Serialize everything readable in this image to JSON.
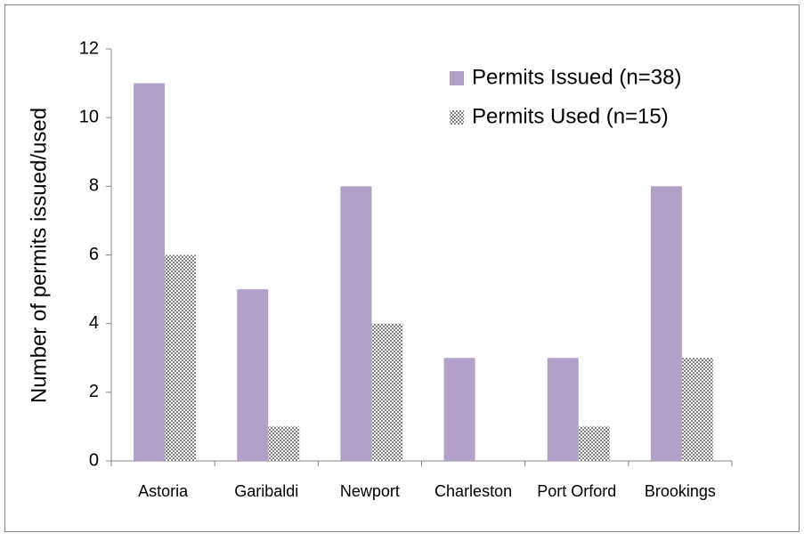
{
  "chart_data": {
    "type": "bar",
    "categories": [
      "Astoria",
      "Garibaldi",
      "Newport",
      "Charleston",
      "Port Orford",
      "Brookings"
    ],
    "series": [
      {
        "name": "Permits Issued (n=38)",
        "color": "#b1a0c7",
        "values": [
          11,
          5,
          8,
          3,
          3,
          8
        ]
      },
      {
        "name": "Permits Used (n=15)",
        "color": "#7f7f7f",
        "pattern": "dots",
        "values": [
          6,
          1,
          4,
          0,
          1,
          3
        ]
      }
    ],
    "y_label": "Number of permits issued/used",
    "ylim": [
      0,
      12
    ],
    "yticks": [
      0,
      2,
      4,
      6,
      8,
      10,
      12
    ],
    "grid": false,
    "legend": "top-right"
  }
}
